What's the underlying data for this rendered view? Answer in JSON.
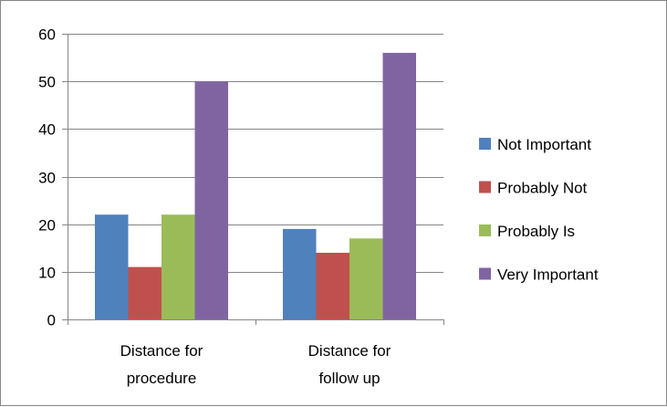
{
  "chart_data": {
    "type": "bar",
    "categories": [
      [
        "Distance for",
        "procedure"
      ],
      [
        "Distance for",
        "follow up"
      ]
    ],
    "series": [
      {
        "name": "Not Important",
        "values": [
          22,
          19
        ],
        "color": "#4F81BD"
      },
      {
        "name": "Probably Not",
        "values": [
          11,
          14
        ],
        "color": "#C0504D"
      },
      {
        "name": "Probably Is",
        "values": [
          22,
          17
        ],
        "color": "#9BBB59"
      },
      {
        "name": "Very Important",
        "values": [
          50,
          56
        ],
        "color": "#8064A2"
      }
    ],
    "ylim": [
      0,
      60
    ],
    "yticks": [
      "0",
      "10",
      "20",
      "30",
      "40",
      "50",
      "60"
    ],
    "grid": true,
    "legend_position": "right"
  }
}
